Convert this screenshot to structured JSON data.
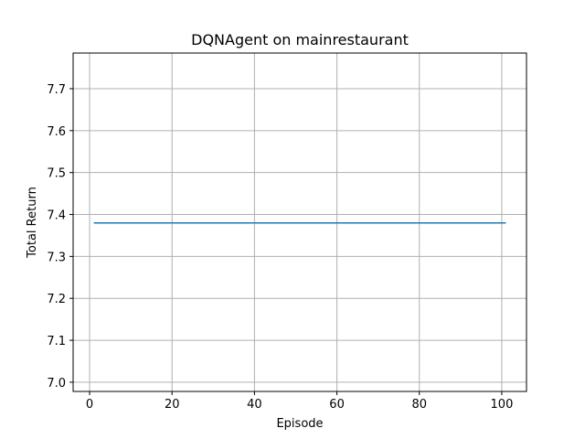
{
  "chart_data": {
    "type": "line",
    "title": "DQNAgent on mainrestaurant",
    "xlabel": "Episode",
    "ylabel": "Total Return",
    "xlim": [
      -4,
      106
    ],
    "ylim": [
      6.978,
      7.785
    ],
    "xticks": [
      0,
      20,
      40,
      60,
      80,
      100
    ],
    "yticks": [
      7.0,
      7.1,
      7.2,
      7.3,
      7.4,
      7.5,
      7.6,
      7.7
    ],
    "grid": true,
    "series": [
      {
        "color": "#1f77b4",
        "x": [
          1,
          101
        ],
        "y": [
          7.38,
          7.38
        ]
      }
    ]
  }
}
